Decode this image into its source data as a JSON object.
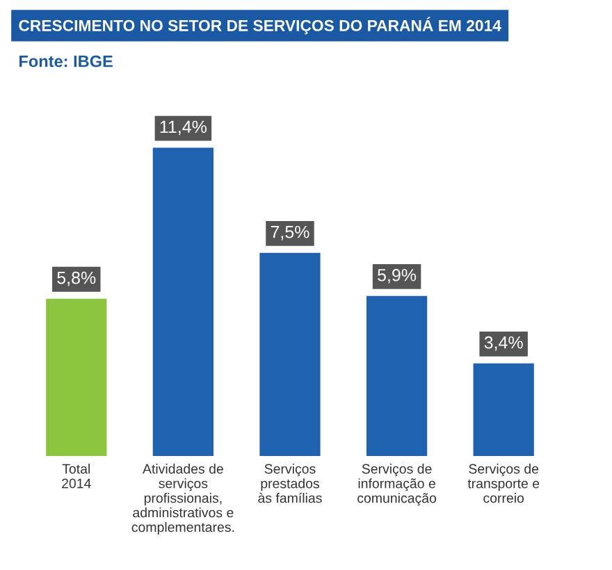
{
  "chart_data": {
    "type": "bar",
    "title": "CRESCIMENTO NO SETOR DE SERVIÇOS DO PARANÁ EM 2014",
    "categories": [
      "Total\n2014",
      "Atividades de\nserviços\nprofissionais,\nadministrativos e\ncomplementares.",
      "Serviços\nprestados\nàs famílias",
      "Serviços de\ninformação e\ncomunicação",
      "Serviços de\ntransporte e\ncorreio"
    ],
    "values": [
      5.8,
      11.4,
      7.5,
      5.9,
      3.4
    ],
    "value_labels": [
      "5,8%",
      "11,4%",
      "7,5%",
      "5,9%",
      "3,4%"
    ],
    "colors": [
      "#8cc63e",
      "#1e62b0",
      "#1e62b0",
      "#1e62b0",
      "#1e62b0"
    ],
    "annotations": [
      "Fonte: IBGE"
    ],
    "legend": false
  }
}
